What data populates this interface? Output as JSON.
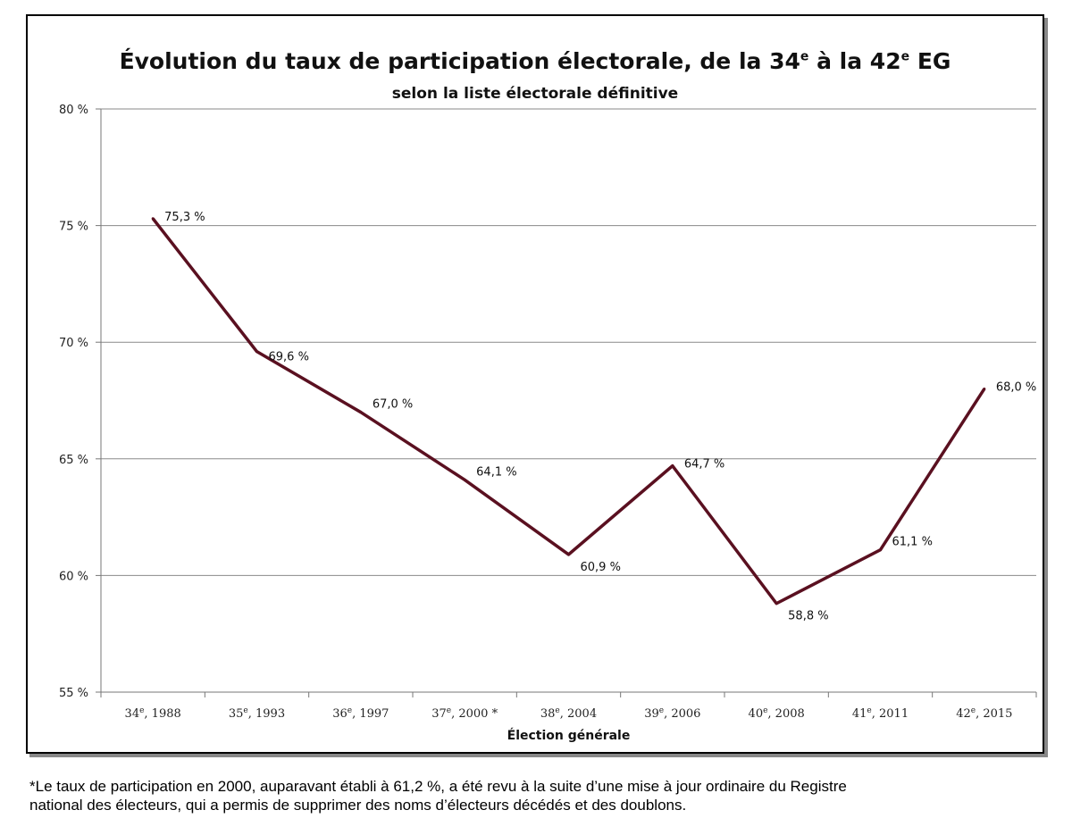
{
  "chart_data": {
    "type": "line",
    "title_main": "Évolution du taux de participation électorale, de la 34",
    "title_sup1": "e",
    "title_mid": " à la 42",
    "title_sup2": "e",
    "title_end": " EG",
    "subtitle": "selon la liste électorale définitive",
    "xlabel": "Élection générale",
    "ylabel": "",
    "ylim": [
      55,
      80
    ],
    "yticks": [
      "55 %",
      "60 %",
      "65 %",
      "70 %",
      "75 %",
      "80 %"
    ],
    "ytick_values": [
      55,
      60,
      65,
      70,
      75,
      80
    ],
    "grid": true,
    "line_color": "#5a1020",
    "categories": [
      {
        "ord": "34",
        "sup": "e",
        "rest": ", 1988"
      },
      {
        "ord": "35",
        "sup": "e",
        "rest": ", 1993"
      },
      {
        "ord": "36",
        "sup": "e",
        "rest": ", 1997"
      },
      {
        "ord": "37",
        "sup": "e",
        "rest": ", 2000 *"
      },
      {
        "ord": "38",
        "sup": "e",
        "rest": ", 2004"
      },
      {
        "ord": "39",
        "sup": "e",
        "rest": ", 2006"
      },
      {
        "ord": "40",
        "sup": "e",
        "rest": ", 2008"
      },
      {
        "ord": "41",
        "sup": "e",
        "rest": ", 2011"
      },
      {
        "ord": "42",
        "sup": "e",
        "rest": ", 2015"
      }
    ],
    "values": [
      75.3,
      69.6,
      67.0,
      64.1,
      60.9,
      64.7,
      58.8,
      61.1,
      68.0
    ],
    "data_labels": [
      "75,3 %",
      "69,6 %",
      "67,0 %",
      "64,1 %",
      "60,9 %",
      "64,7 %",
      "58,8 %",
      "61,1 %",
      "68,0 %"
    ]
  },
  "footnote": {
    "line1": "*Le taux de participation en 2000, auparavant établi à 61,2 %, a été revu à la suite d’une mise à jour ordinaire du Registre",
    "line2": "national des électeurs, qui a permis de supprimer des noms d’électeurs décédés et des doublons."
  }
}
